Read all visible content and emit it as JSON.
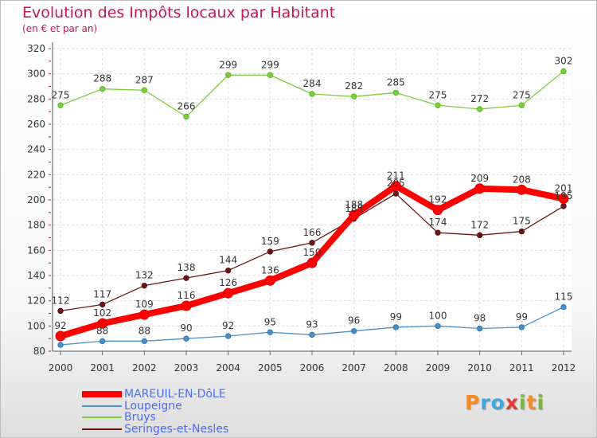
{
  "title": "Evolution des Impôts locaux par Habitant",
  "subtitle": "(en € et par an)",
  "chart_data": {
    "type": "line",
    "title": "Evolution des Impôts locaux par Habitant",
    "subtitle": "(en € et par an)",
    "x": [
      "2000",
      "2001",
      "2002",
      "2003",
      "2004",
      "2005",
      "2006",
      "2007",
      "2008",
      "2009",
      "2010",
      "2011",
      "2012"
    ],
    "ylim": [
      80,
      320
    ],
    "yticks": [
      80,
      100,
      120,
      140,
      160,
      180,
      200,
      220,
      240,
      260,
      280,
      300,
      320
    ],
    "grid": true,
    "legend_position": "bottom-left",
    "series": [
      {
        "name": "MAREUIL-EN-DôLE",
        "color": "#ff0000",
        "values": [
          92,
          102,
          109,
          116,
          126,
          136,
          150,
          188,
          211,
          192,
          209,
          208,
          201
        ]
      },
      {
        "name": "Loupeigne",
        "color": "#4a90c8",
        "values": [
          85,
          88,
          88,
          90,
          92,
          95,
          93,
          96,
          99,
          100,
          98,
          99,
          115
        ]
      },
      {
        "name": "Bruys",
        "color": "#7ccd3c",
        "values": [
          275,
          288,
          287,
          266,
          299,
          299,
          284,
          282,
          285,
          275,
          272,
          275,
          302
        ]
      },
      {
        "name": "Seringes-et-Nesles",
        "color": "#6b1515",
        "values": [
          112,
          117,
          132,
          138,
          144,
          159,
          166,
          185,
          205,
          174,
          172,
          175,
          195
        ]
      }
    ],
    "data_labels": [
      [
        "92",
        "102",
        "109",
        "116",
        "126",
        "136",
        "150",
        "188",
        "211",
        "192",
        "209",
        "208",
        "201"
      ],
      [
        "",
        "88",
        "88",
        "90",
        "92",
        "95",
        "93",
        "96",
        "99",
        "100",
        "98",
        "99",
        "115"
      ],
      [
        "275",
        "288",
        "287",
        "266",
        "299",
        "299",
        "284",
        "282",
        "285",
        "275",
        "272",
        "275",
        "302"
      ],
      [
        "112",
        "117",
        "132",
        "138",
        "144",
        "159",
        "166",
        "185",
        "205",
        "174",
        "172",
        "175",
        "195"
      ]
    ]
  },
  "logo": {
    "letters": [
      "P",
      "r",
      "o",
      "x",
      "i",
      "t",
      "i"
    ],
    "colors": [
      "#f28c28",
      "#3da8df",
      "#3da8df",
      "#e53935",
      "#7cb342",
      "#f28c28",
      "#7cb342"
    ]
  }
}
